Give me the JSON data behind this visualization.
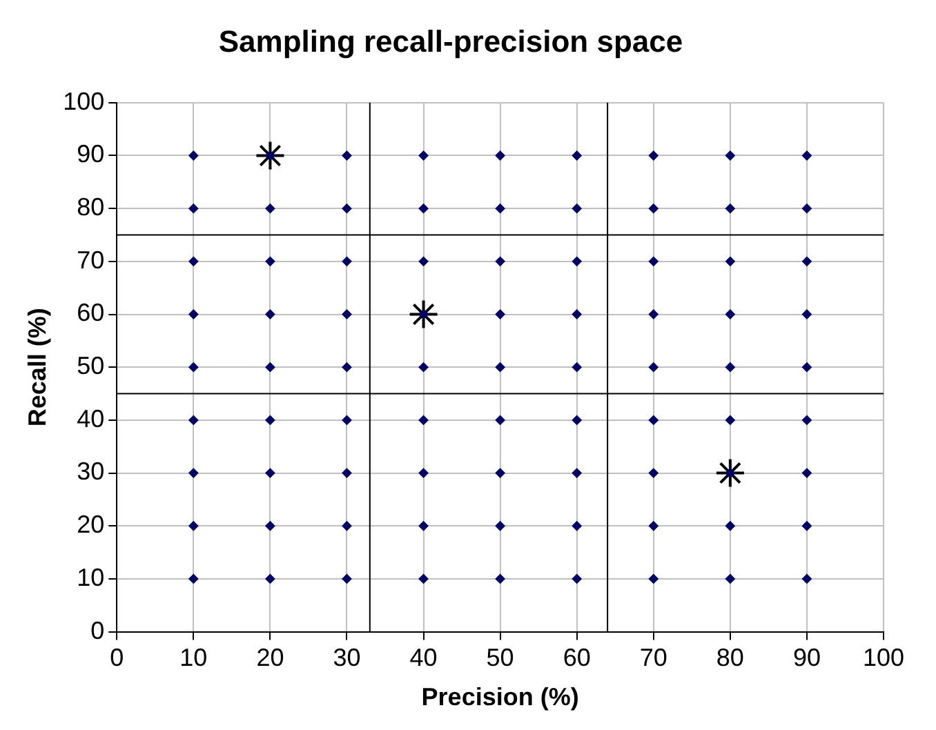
{
  "chart_data": {
    "type": "scatter",
    "title": "Sampling recall-precision space",
    "xlabel": "Precision (%)",
    "ylabel": "Recall (%)",
    "xlim": [
      0,
      100
    ],
    "xticks": [
      0,
      10,
      20,
      30,
      40,
      50,
      60,
      70,
      80,
      90,
      100
    ],
    "ylim": [
      0,
      100
    ],
    "yticks": [
      0,
      10,
      20,
      30,
      40,
      50,
      60,
      70,
      80,
      90,
      100
    ],
    "grid": true,
    "marker": "diamond",
    "series": [
      {
        "color": "#000066",
        "x": [
          10,
          20,
          30,
          40,
          50,
          60,
          70,
          80,
          90,
          10,
          20,
          30,
          40,
          50,
          60,
          70,
          80,
          90,
          10,
          20,
          30,
          40,
          50,
          60,
          70,
          80,
          90,
          10,
          20,
          30,
          40,
          50,
          60,
          70,
          80,
          90,
          10,
          20,
          30,
          40,
          50,
          60,
          70,
          80,
          90,
          10,
          20,
          30,
          40,
          50,
          60,
          70,
          80,
          90,
          10,
          20,
          30,
          40,
          50,
          60,
          70,
          80,
          90,
          10,
          20,
          30,
          40,
          50,
          60,
          70,
          80,
          90,
          10,
          20,
          30,
          40,
          50,
          60,
          70,
          80,
          90
        ],
        "values": [
          10,
          10,
          10,
          10,
          10,
          10,
          10,
          10,
          10,
          20,
          20,
          20,
          20,
          20,
          20,
          20,
          20,
          20,
          30,
          30,
          30,
          30,
          30,
          30,
          30,
          30,
          30,
          40,
          40,
          40,
          40,
          40,
          40,
          40,
          40,
          40,
          50,
          50,
          50,
          50,
          50,
          50,
          50,
          50,
          50,
          60,
          60,
          60,
          60,
          60,
          60,
          60,
          60,
          60,
          70,
          70,
          70,
          70,
          70,
          70,
          70,
          70,
          70,
          80,
          80,
          80,
          80,
          80,
          80,
          80,
          80,
          80,
          90,
          90,
          90,
          90,
          90,
          90,
          90,
          90,
          90
        ]
      },
      {
        "color": "#000000",
        "marker": "cross",
        "x": [
          20,
          40,
          80
        ],
        "values": [
          90,
          60,
          30
        ]
      }
    ],
    "ref_lines": [
      {
        "axis": "x",
        "value": 33
      },
      {
        "axis": "x",
        "value": 64
      },
      {
        "axis": "y",
        "value": 45
      },
      {
        "axis": "y",
        "value": 75
      }
    ]
  }
}
